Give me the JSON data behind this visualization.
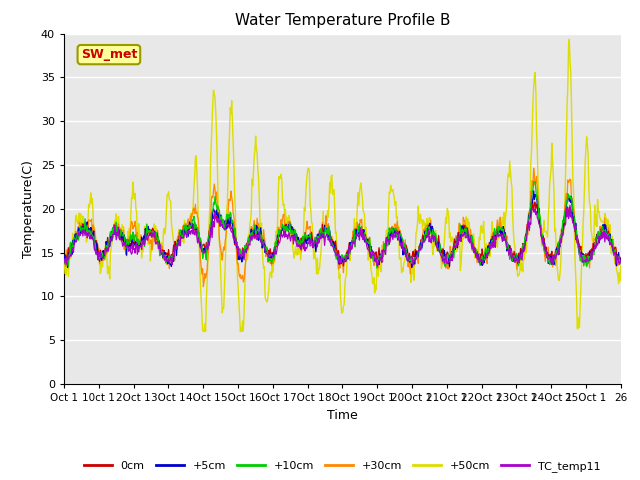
{
  "title": "Water Temperature Profile B",
  "xlabel": "Time",
  "ylabel": "Temperature(C)",
  "ylim": [
    0,
    40
  ],
  "yticks": [
    0,
    5,
    10,
    15,
    20,
    25,
    30,
    35,
    40
  ],
  "xtick_labels": [
    "Oct 1\n",
    "1Oct 1\n",
    "2Oct 1\n",
    "3Oct 1\n",
    "4Oct 1\n",
    "5Oct 1\n",
    "6Oct 1\n",
    "7Oct 1\n",
    "8Oct 1\n",
    "9Oct 1\n",
    "20Oct 1\n",
    "21Oct 1\n",
    "22Oct 1\n",
    "23Oct 1\n",
    "24Oct 1\n",
    "25Oct 1\n",
    "26"
  ],
  "legend_labels": [
    "0cm",
    "+5cm",
    "+10cm",
    "+30cm",
    "+50cm",
    "TC_temp11"
  ],
  "line_colors": [
    "#cc0000",
    "#0000cc",
    "#00cc00",
    "#ff8800",
    "#dddd00",
    "#aa00cc"
  ],
  "annotation_text": "SW_met",
  "annotation_bg": "#ffff99",
  "annotation_border": "#999900",
  "annotation_text_color": "#cc0000",
  "plot_bg_color": "#e8e8e8",
  "title_fontsize": 11,
  "axis_fontsize": 9,
  "tick_fontsize": 8
}
